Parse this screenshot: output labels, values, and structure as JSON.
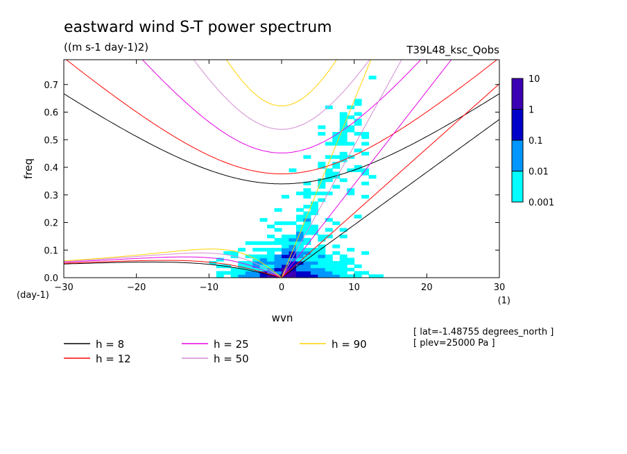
{
  "chart_data": {
    "type": "heatmap",
    "title": "eastward wind S-T power spectrum",
    "subtitle": "((m s-1 day-1)2)",
    "run_label": "T39L48_ksc_Qobs",
    "xlabel": "wvn",
    "ylabel": "freq",
    "x_unit": "(1)",
    "y_unit": "(day-1)",
    "xlim": [
      -30,
      30
    ],
    "ylim": [
      0,
      0.79
    ],
    "x_ticks": [
      -30,
      -20,
      -10,
      0,
      10,
      20,
      30
    ],
    "y_ticks": [
      0.0,
      0.1,
      0.2,
      0.3,
      0.4,
      0.5,
      0.6,
      0.7
    ],
    "y_tick_labels": [
      "0.0",
      "0.1",
      "0.2",
      "0.3",
      "0.4",
      "0.5",
      "0.6",
      "0.7"
    ],
    "colorbar": {
      "levels": [
        "0.001",
        "0.01",
        "0.1",
        "1",
        "10"
      ],
      "colors": [
        "#00ffff",
        "#0096ff",
        "#0000c8",
        "#3c00b4"
      ]
    },
    "dispersion_curves": [
      {
        "label": "h =  8",
        "equivalent_depth": 8,
        "color": "#000000"
      },
      {
        "label": "h = 12",
        "equivalent_depth": 12,
        "color": "#ff0000"
      },
      {
        "label": "h = 25",
        "equivalent_depth": 25,
        "color": "#e600e6"
      },
      {
        "label": "h = 50",
        "equivalent_depth": 50,
        "color": "#d28cd2"
      },
      {
        "label": "h = 90",
        "equivalent_depth": 90,
        "color": "#ffd200"
      }
    ],
    "annotations": [
      "[ lat=-1.48755 degrees_north ]",
      "[ plev=25000 Pa ]"
    ]
  }
}
